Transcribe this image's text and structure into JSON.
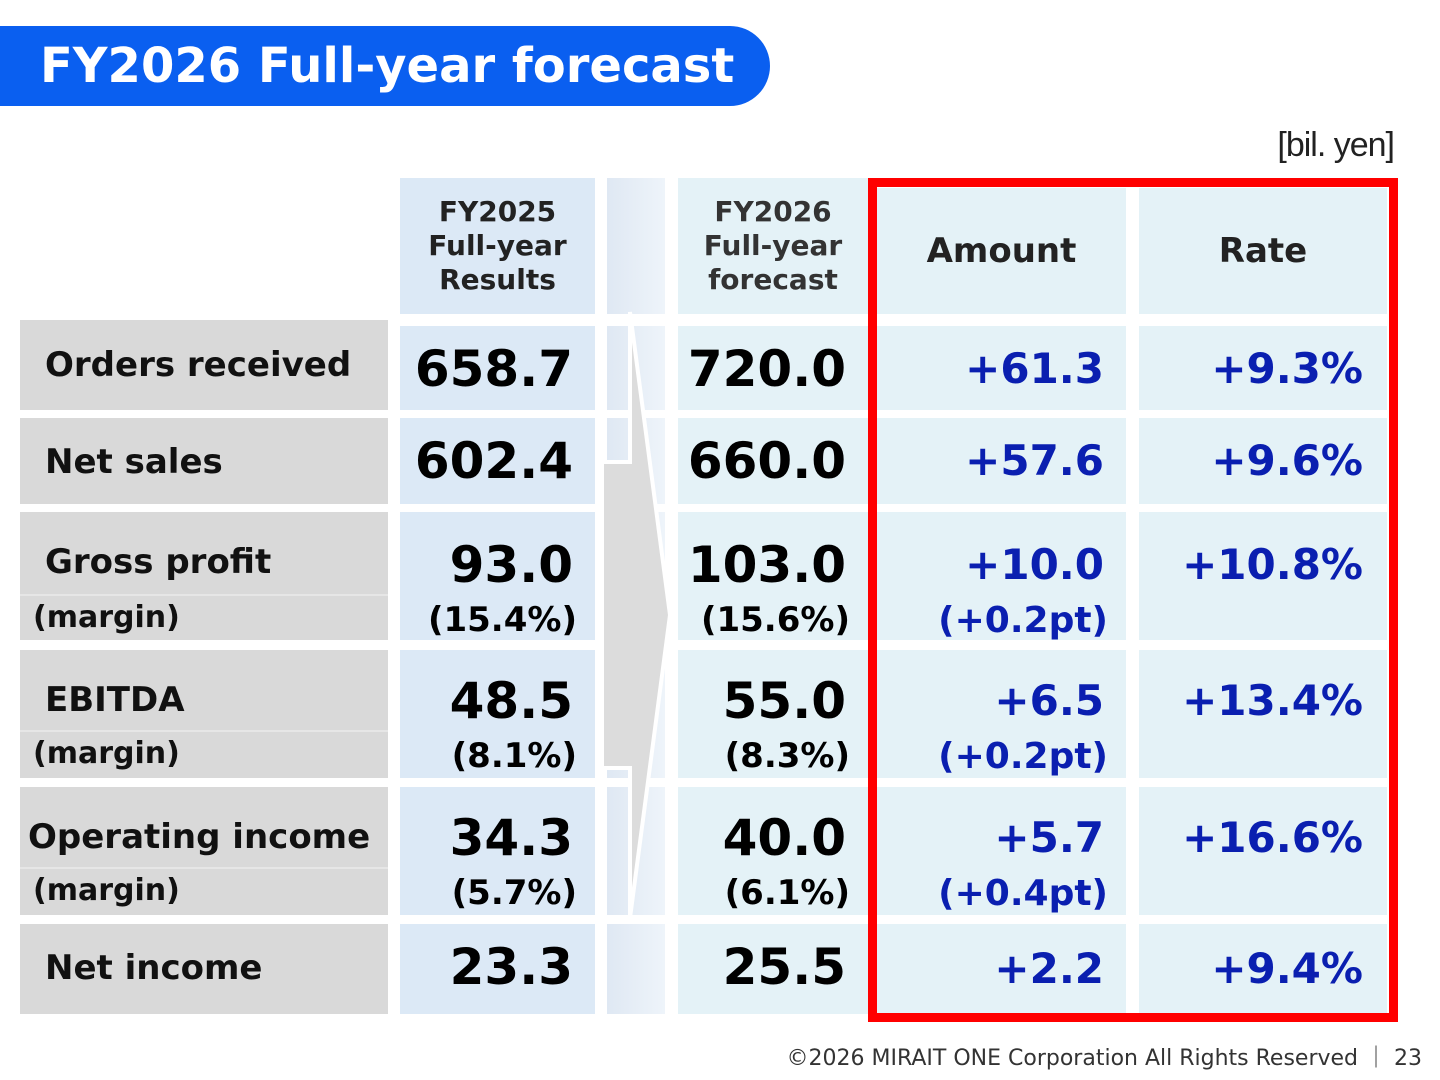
{
  "title": "FY2026 Full-year forecast",
  "unit": "[bil. yen]",
  "headers": {
    "fy2025": [
      "FY2025",
      "Full-year",
      "Results"
    ],
    "fy2026": [
      "FY2026",
      "Full-year",
      "forecast"
    ],
    "amount": "Amount",
    "rate": "Rate"
  },
  "rows": [
    {
      "label": "Orders received",
      "fy2025": "658.7",
      "fy2026": "720.0",
      "amount": "+61.3",
      "rate": "+9.3%"
    },
    {
      "label": "Net sales",
      "fy2025": "602.4",
      "fy2026": "660.0",
      "amount": "+57.6",
      "rate": "+9.6%"
    },
    {
      "label": "Gross profit",
      "sub_label": "(margin)",
      "fy2025": "93.0",
      "fy2025_sub": "(15.4%)",
      "fy2026": "103.0",
      "fy2026_sub": "(15.6%)",
      "amount": "+10.0",
      "amount_sub": "(+0.2pt)",
      "rate": "+10.8%"
    },
    {
      "label": "EBITDA",
      "sub_label": "(margin)",
      "fy2025": "48.5",
      "fy2025_sub": "(8.1%)",
      "fy2026": "55.0",
      "fy2026_sub": "(8.3%)",
      "amount": "+6.5",
      "amount_sub": "(+0.2pt)",
      "rate": "+13.4%"
    },
    {
      "label": "Operating income",
      "sub_label": "(margin)",
      "fy2025": "34.3",
      "fy2025_sub": "(5.7%)",
      "fy2026": "40.0",
      "fy2026_sub": "(6.1%)",
      "amount": "+5.7",
      "amount_sub": "(+0.4pt)",
      "rate": "+16.6%"
    },
    {
      "label": "Net income",
      "fy2025": "23.3",
      "fy2026": "25.5",
      "amount": "+2.2",
      "rate": "+9.4%"
    }
  ],
  "footer": "©2026 MIRAIT ONE Corporation All Rights Reserved ｜ 23",
  "colors": {
    "title_bg": "#0a5ff0",
    "highlight_border": "#ff0000",
    "change_text": "#0a1fb0"
  }
}
